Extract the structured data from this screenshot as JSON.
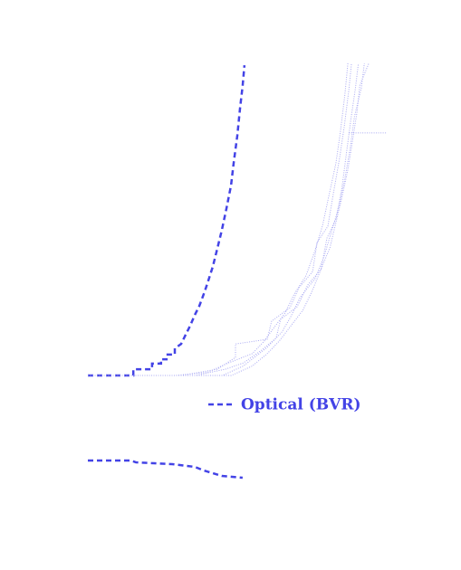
{
  "chart_data": [
    {
      "type": "line",
      "xlim": [
        0,
        100
      ],
      "ylim": [
        0,
        100
      ],
      "legend": "bottom-right",
      "series": [
        {
          "name": "Optical (BVR)",
          "color": "#4343e6",
          "linestyle": "dashed",
          "x": [
            0,
            15.2,
            15.2,
            21.5,
            21.5,
            24.5,
            24.5,
            26.7,
            26.7,
            29.1,
            29.1,
            31.2,
            32.7,
            34.2,
            35.8,
            37.3,
            39.1,
            40.3,
            41.8,
            43.3,
            44.8,
            46.4,
            47.9,
            48.8,
            50,
            50.9,
            51.8,
            52.4
          ],
          "values": [
            0,
            0,
            2,
            2,
            3.8,
            3.8,
            5.2,
            5.2,
            6.7,
            6.7,
            8.7,
            10.1,
            13,
            15.9,
            19.4,
            22.3,
            26.9,
            30.4,
            34.8,
            40.6,
            46.4,
            53.6,
            60.9,
            68.1,
            76.8,
            85.5,
            92.8,
            99.4
          ]
        },
        {
          "color": "#a9a9f2",
          "linestyle": "dotted",
          "x": [
            0,
            31.2,
            43.3,
            49.4,
            49.4,
            60,
            61.5,
            67.6,
            70.6,
            75.2,
            76.7,
            80.3,
            82.1,
            84.2,
            85.8,
            87.3,
            88.2
          ],
          "values": [
            0,
            0,
            2,
            5.8,
            10.1,
            11.6,
            17.4,
            21.7,
            28.1,
            33.3,
            42.6,
            47.8,
            58,
            69.6,
            79.7,
            91.3,
            100
          ]
        },
        {
          "color": "#a9a9f2",
          "linestyle": "dotted",
          "x": [
            0,
            36,
            46,
            52,
            58,
            63,
            64.5,
            70,
            73.6,
            78,
            80,
            83,
            85,
            86.5,
            88,
            89.5,
            90.5
          ],
          "values": [
            0,
            0,
            2,
            4,
            8,
            12,
            18,
            22,
            29,
            34,
            44,
            50,
            60,
            71,
            82,
            92,
            100
          ]
        },
        {
          "color": "#a9a9f2",
          "linestyle": "dotted",
          "x": [
            0,
            45,
            52,
            56,
            60,
            65,
            68,
            71,
            76,
            79,
            81.5,
            84,
            86,
            87.8,
            89.2,
            91.5,
            92.5
          ],
          "values": [
            0,
            0,
            3,
            6,
            9,
            14,
            19,
            25,
            31,
            38,
            46,
            54,
            63,
            73,
            83,
            92,
            100
          ]
        },
        {
          "color": "#a9a9f2",
          "linestyle": "dotted",
          "x": [
            0,
            29,
            40,
            47,
            55,
            59,
            62,
            66,
            69,
            73,
            76,
            78.5,
            80.5,
            83,
            84.5,
            86,
            87
          ],
          "values": [
            0,
            0,
            1,
            4,
            7,
            11,
            15,
            20,
            26,
            32,
            40,
            48,
            57,
            68,
            78,
            90,
            100
          ]
        },
        {
          "color": "#a9a9f2",
          "linestyle": "dotted",
          "x": [
            0,
            48,
            55,
            60,
            64,
            68,
            72,
            75,
            78,
            81,
            83,
            85,
            87,
            88.5,
            90,
            91,
            94
          ],
          "values": [
            0,
            0,
            3,
            7,
            11,
            16,
            21,
            27,
            34,
            41,
            49,
            57,
            66,
            75,
            84,
            93,
            100
          ]
        },
        {
          "color": "#a9a9f2",
          "linestyle": "dotted",
          "x": [
            87.3,
            100
          ],
          "values": [
            77.7,
            77.7
          ]
        }
      ]
    },
    {
      "type": "line",
      "xlim": [
        0,
        100
      ],
      "ylim": [
        0,
        100
      ],
      "series": [
        {
          "color": "#4343e6",
          "linestyle": "dashed",
          "x": [
            0,
            14.5,
            16.1,
            22.1,
            28.2,
            35.8,
            38.8,
            44.8,
            51.8
          ],
          "values": [
            51,
            51,
            49,
            48,
            47,
            44,
            40,
            34,
            32
          ]
        }
      ]
    }
  ]
}
